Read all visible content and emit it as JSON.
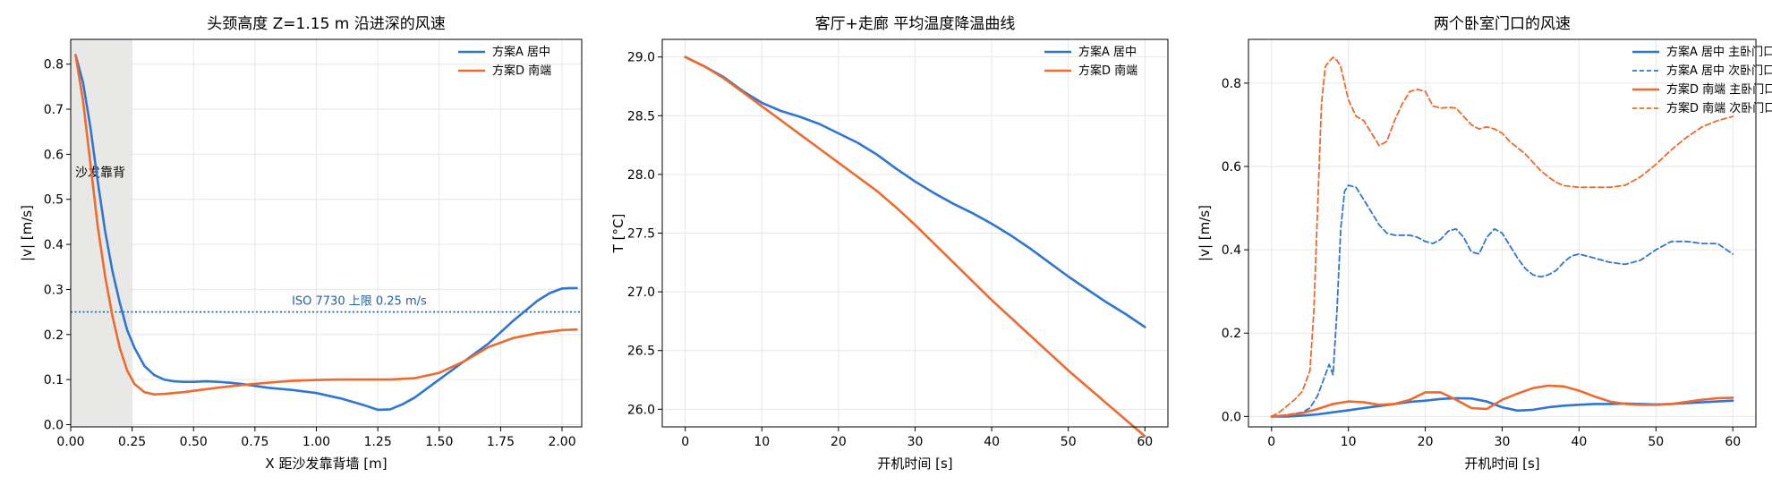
{
  "colors": {
    "series_a": "#2f76d2",
    "series_d": "#ee6a2e",
    "iso_line": "#1f5fa8",
    "shade": "#e8e8e6",
    "grid": "#e6e6e6",
    "axis": "#000000"
  },
  "chart_data": [
    {
      "type": "line",
      "title": "头颈高度 Z=1.15 m 沿进深的风速",
      "xlabel": "X 距沙发靠背墙 [m]",
      "ylabel": "|v| [m/s]",
      "xlim": [
        0.0,
        2.08
      ],
      "ylim": [
        -0.005,
        0.855
      ],
      "xticks": [
        0.0,
        0.25,
        0.5,
        0.75,
        1.0,
        1.25,
        1.5,
        1.75,
        2.0
      ],
      "xtick_labels": [
        "0.00",
        "0.25",
        "0.50",
        "0.75",
        "1.00",
        "1.25",
        "1.50",
        "1.75",
        "2.00"
      ],
      "yticks": [
        0.0,
        0.1,
        0.2,
        0.3,
        0.4,
        0.5,
        0.6,
        0.7,
        0.8
      ],
      "ytick_labels": [
        "0.0",
        "0.1",
        "0.2",
        "0.3",
        "0.4",
        "0.5",
        "0.6",
        "0.7",
        "0.8"
      ],
      "grid": true,
      "legend_position": "top-right",
      "shaded_region": {
        "x0": 0.0,
        "x1": 0.25,
        "label": "沙发靠背",
        "label_y": 0.56
      },
      "hline": {
        "y": 0.25,
        "label": "ISO 7730 上限 0.25 m/s",
        "label_x": 0.9
      },
      "series": [
        {
          "name": "方案A 居中",
          "color_key": "series_a",
          "dash": "solid",
          "x": [
            0.02,
            0.05,
            0.08,
            0.11,
            0.14,
            0.17,
            0.2,
            0.23,
            0.26,
            0.3,
            0.34,
            0.38,
            0.42,
            0.46,
            0.5,
            0.55,
            0.6,
            0.65,
            0.7,
            0.75,
            0.8,
            0.9,
            1.0,
            1.1,
            1.2,
            1.25,
            1.3,
            1.35,
            1.4,
            1.5,
            1.6,
            1.7,
            1.8,
            1.9,
            1.95,
            2.0,
            2.03,
            2.06
          ],
          "y": [
            0.82,
            0.76,
            0.66,
            0.54,
            0.43,
            0.34,
            0.27,
            0.21,
            0.17,
            0.13,
            0.11,
            0.1,
            0.096,
            0.095,
            0.095,
            0.096,
            0.095,
            0.093,
            0.09,
            0.086,
            0.082,
            0.077,
            0.07,
            0.058,
            0.042,
            0.033,
            0.034,
            0.045,
            0.06,
            0.1,
            0.14,
            0.18,
            0.23,
            0.275,
            0.292,
            0.302,
            0.303,
            0.303
          ]
        },
        {
          "name": "方案D 南端",
          "color_key": "series_d",
          "dash": "solid",
          "x": [
            0.02,
            0.05,
            0.08,
            0.11,
            0.14,
            0.17,
            0.2,
            0.23,
            0.26,
            0.3,
            0.34,
            0.38,
            0.42,
            0.46,
            0.5,
            0.6,
            0.7,
            0.8,
            0.9,
            1.0,
            1.1,
            1.2,
            1.3,
            1.4,
            1.5,
            1.6,
            1.7,
            1.8,
            1.9,
            2.0,
            2.06
          ],
          "y": [
            0.82,
            0.72,
            0.58,
            0.44,
            0.33,
            0.24,
            0.17,
            0.12,
            0.09,
            0.072,
            0.067,
            0.068,
            0.07,
            0.072,
            0.075,
            0.082,
            0.088,
            0.093,
            0.097,
            0.099,
            0.1,
            0.1,
            0.1,
            0.103,
            0.115,
            0.14,
            0.172,
            0.192,
            0.203,
            0.21,
            0.211
          ]
        }
      ]
    },
    {
      "type": "line",
      "title": "客厅+走廊 平均温度降温曲线",
      "xlabel": "开机时间 [s]",
      "ylabel": "T [°C]",
      "xlim": [
        -3.0,
        63.0
      ],
      "ylim": [
        25.85,
        29.15
      ],
      "xticks": [
        0,
        10,
        20,
        30,
        40,
        50,
        60
      ],
      "xtick_labels": [
        "0",
        "10",
        "20",
        "30",
        "40",
        "50",
        "60"
      ],
      "yticks": [
        26.0,
        26.5,
        27.0,
        27.5,
        28.0,
        28.5,
        29.0
      ],
      "ytick_labels": [
        "26.0",
        "26.5",
        "27.0",
        "27.5",
        "28.0",
        "28.5",
        "29.0"
      ],
      "grid": true,
      "legend_position": "top-right",
      "series": [
        {
          "name": "方案A 居中",
          "color_key": "series_a",
          "dash": "solid",
          "x": [
            0,
            2.5,
            5,
            7.5,
            10,
            12.5,
            15,
            17.5,
            20,
            22.5,
            25,
            27.5,
            30,
            32.5,
            35,
            37.5,
            40,
            42.5,
            45,
            47.5,
            50,
            52.5,
            55,
            57.5,
            60
          ],
          "y": [
            29.0,
            28.92,
            28.83,
            28.71,
            28.61,
            28.54,
            28.49,
            28.43,
            28.35,
            28.27,
            28.17,
            28.05,
            27.94,
            27.84,
            27.75,
            27.67,
            27.58,
            27.48,
            27.37,
            27.25,
            27.13,
            27.02,
            26.91,
            26.81,
            26.7
          ]
        },
        {
          "name": "方案D 南端",
          "color_key": "series_d",
          "dash": "solid",
          "x": [
            0,
            2.5,
            5,
            7.5,
            10,
            12.5,
            15,
            17.5,
            20,
            22.5,
            25,
            27.5,
            30,
            32.5,
            35,
            37.5,
            40,
            42.5,
            45,
            47.5,
            50,
            52.5,
            55,
            57.5,
            60
          ],
          "y": [
            29.0,
            28.92,
            28.82,
            28.7,
            28.58,
            28.46,
            28.34,
            28.22,
            28.1,
            27.98,
            27.86,
            27.72,
            27.57,
            27.41,
            27.25,
            27.09,
            26.93,
            26.78,
            26.63,
            26.48,
            26.33,
            26.19,
            26.05,
            25.91,
            25.77
          ]
        }
      ]
    },
    {
      "type": "line",
      "title": "两个卧室门口的风速",
      "xlabel": "开机时间 [s]",
      "ylabel": "|v| [m/s]",
      "xlim": [
        -3.0,
        63.0
      ],
      "ylim": [
        -0.025,
        0.905
      ],
      "xticks": [
        0,
        10,
        20,
        30,
        40,
        50,
        60
      ],
      "xtick_labels": [
        "0",
        "10",
        "20",
        "30",
        "40",
        "50",
        "60"
      ],
      "yticks": [
        0.0,
        0.2,
        0.4,
        0.6,
        0.8
      ],
      "ytick_labels": [
        "0.0",
        "0.2",
        "0.4",
        "0.6",
        "0.8"
      ],
      "grid": true,
      "legend_position": "top-right",
      "series": [
        {
          "name": "方案A 居中 主卧门口",
          "color_key": "series_a",
          "dash": "solid",
          "x": [
            0,
            2,
            4,
            6,
            8,
            10,
            12,
            14,
            16,
            18,
            20,
            22,
            24,
            26,
            28,
            30,
            32,
            34,
            36,
            38,
            40,
            42,
            44,
            46,
            48,
            50,
            52,
            54,
            56,
            58,
            60
          ],
          "y": [
            0.0,
            0.0,
            0.002,
            0.005,
            0.01,
            0.015,
            0.02,
            0.025,
            0.03,
            0.035,
            0.038,
            0.042,
            0.044,
            0.043,
            0.036,
            0.022,
            0.014,
            0.016,
            0.022,
            0.026,
            0.028,
            0.03,
            0.03,
            0.031,
            0.03,
            0.029,
            0.03,
            0.032,
            0.034,
            0.036,
            0.038
          ]
        },
        {
          "name": "方案A 居中 次卧门口",
          "color_key": "series_a",
          "dash": "dashed",
          "x": [
            0,
            2,
            4,
            5,
            6,
            7,
            7.5,
            8,
            8.5,
            9,
            9.5,
            10,
            11,
            12,
            13,
            14,
            15,
            16,
            17,
            18,
            19,
            20,
            21,
            22,
            23,
            24,
            25,
            26,
            27,
            28,
            29,
            30,
            31,
            32,
            33,
            34,
            35,
            36,
            37,
            38,
            39,
            40,
            42,
            44,
            46,
            48,
            50,
            52,
            54,
            56,
            58,
            60
          ],
          "y": [
            0.0,
            0.004,
            0.01,
            0.02,
            0.05,
            0.1,
            0.125,
            0.1,
            0.25,
            0.45,
            0.54,
            0.555,
            0.55,
            0.52,
            0.49,
            0.46,
            0.44,
            0.435,
            0.435,
            0.435,
            0.43,
            0.42,
            0.415,
            0.425,
            0.445,
            0.45,
            0.43,
            0.395,
            0.39,
            0.43,
            0.45,
            0.44,
            0.41,
            0.38,
            0.355,
            0.34,
            0.335,
            0.34,
            0.35,
            0.37,
            0.385,
            0.39,
            0.38,
            0.37,
            0.365,
            0.375,
            0.4,
            0.42,
            0.42,
            0.415,
            0.415,
            0.39
          ]
        },
        {
          "name": "方案D 南端 主卧门口",
          "color_key": "series_d",
          "dash": "solid",
          "x": [
            0,
            2,
            4,
            6,
            8,
            10,
            12,
            14,
            16,
            18,
            20,
            22,
            24,
            26,
            28,
            30,
            32,
            34,
            36,
            38,
            40,
            42,
            44,
            46,
            48,
            50,
            52,
            54,
            56,
            58,
            60
          ],
          "y": [
            0.0,
            0.003,
            0.008,
            0.018,
            0.03,
            0.036,
            0.034,
            0.028,
            0.03,
            0.04,
            0.058,
            0.058,
            0.04,
            0.02,
            0.018,
            0.04,
            0.055,
            0.068,
            0.074,
            0.072,
            0.062,
            0.048,
            0.036,
            0.03,
            0.028,
            0.028,
            0.03,
            0.035,
            0.04,
            0.044,
            0.045
          ]
        },
        {
          "name": "方案D 南端 次卧门口",
          "color_key": "series_d",
          "dash": "dashed",
          "x": [
            0,
            1,
            2,
            3,
            4,
            5,
            5.5,
            6,
            6.5,
            7,
            7.5,
            8,
            8.5,
            9,
            9.5,
            10,
            11,
            12,
            13,
            14,
            15,
            16,
            17,
            18,
            19,
            20,
            21,
            22,
            23,
            24,
            25,
            26,
            27,
            28,
            29,
            30,
            31,
            32,
            33,
            34,
            35,
            36,
            37,
            38,
            40,
            42,
            44,
            46,
            48,
            50,
            52,
            54,
            56,
            58,
            60
          ],
          "y": [
            0.0,
            0.01,
            0.025,
            0.04,
            0.06,
            0.11,
            0.25,
            0.5,
            0.75,
            0.84,
            0.852,
            0.862,
            0.855,
            0.84,
            0.8,
            0.76,
            0.72,
            0.71,
            0.68,
            0.65,
            0.66,
            0.71,
            0.75,
            0.78,
            0.785,
            0.78,
            0.745,
            0.74,
            0.742,
            0.74,
            0.72,
            0.7,
            0.69,
            0.695,
            0.69,
            0.68,
            0.66,
            0.645,
            0.63,
            0.61,
            0.59,
            0.575,
            0.562,
            0.554,
            0.55,
            0.55,
            0.55,
            0.555,
            0.575,
            0.605,
            0.64,
            0.67,
            0.695,
            0.71,
            0.72
          ]
        }
      ]
    }
  ]
}
